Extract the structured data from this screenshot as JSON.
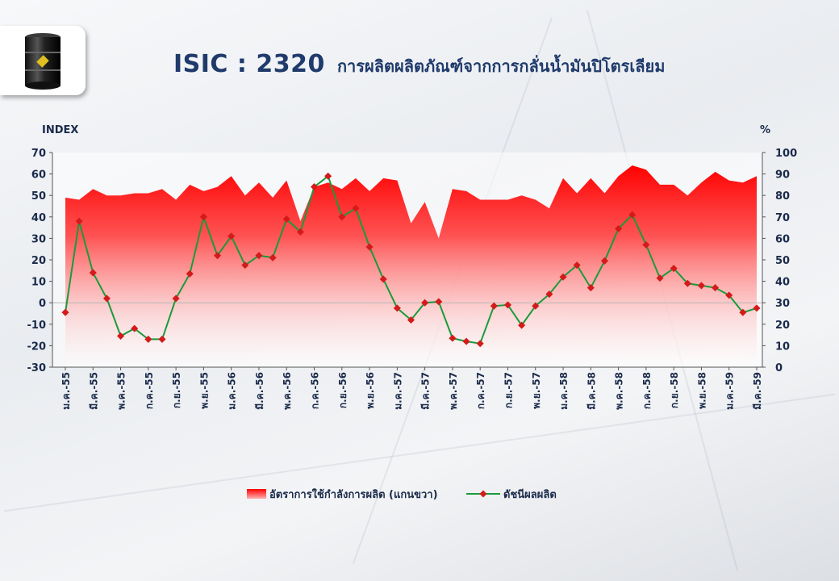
{
  "title": {
    "code": "ISIC : 2320",
    "name": "การผลิตผลิตภัณฑ์จากการกลั่นน้ำมันปิโตรเลียม"
  },
  "logo": {
    "icon": "oil-barrel-icon"
  },
  "chart_data": {
    "type": "line",
    "left_axis": {
      "label": "INDEX",
      "ylim": [
        -30,
        70
      ],
      "ticks": [
        "70",
        "60",
        "50",
        "40",
        "30",
        "20",
        "10",
        "0",
        "-10",
        "-20",
        "-30"
      ]
    },
    "right_axis": {
      "label": "%",
      "ylim": [
        0,
        100
      ],
      "ticks": [
        "100",
        "90",
        "80",
        "70",
        "60",
        "50",
        "40",
        "30",
        "20",
        "10",
        "0"
      ]
    },
    "x_tick_labels": [
      "ม.ค.-55",
      "มี.ค.-55",
      "พ.ค.-55",
      "ก.ค.-55",
      "ก.ย.-55",
      "พ.ย.-55",
      "ม.ค.-56",
      "มี.ค.-56",
      "พ.ค.-56",
      "ก.ค.-56",
      "ก.ย.-56",
      "พ.ย.-56",
      "ม.ค.-57",
      "มี.ค.-57",
      "พ.ค.-57",
      "ก.ค.-57",
      "ก.ย.-57",
      "พ.ย.-57",
      "ม.ค.-58",
      "มี.ค.-58",
      "พ.ค.-58",
      "ก.ค.-58",
      "ก.ย.-58",
      "พ.ย.-58",
      "ม.ค.-59",
      "มี.ค.-59"
    ],
    "series": [
      {
        "name": "อัตราการใช้กำลังการผลิต (แกนขวา)",
        "type": "area",
        "axis": "right",
        "color": "#ff0000",
        "values": [
          79,
          78,
          83,
          80,
          80,
          81,
          81,
          83,
          78,
          85,
          82,
          84,
          89,
          80,
          86,
          79,
          87,
          68,
          84,
          86,
          83,
          88,
          82,
          88,
          87,
          67,
          77,
          60,
          83,
          82,
          78,
          78,
          78,
          80,
          78,
          74,
          88,
          81,
          88,
          81,
          89,
          94,
          92,
          85,
          85,
          80,
          86,
          91,
          87,
          86,
          89
        ]
      },
      {
        "name": "ดัชนีผลผลิต",
        "type": "line",
        "axis": "left",
        "color": "#1a9a3a",
        "marker_color": "#d41a1a",
        "values": [
          -4.5,
          38,
          14,
          2,
          -15.5,
          -12,
          -17,
          -17,
          2,
          13.5,
          40,
          22,
          31,
          17.5,
          22,
          21,
          39,
          33,
          54,
          59,
          40,
          44,
          26,
          11,
          -2.5,
          -8,
          0,
          0.5,
          -16.5,
          -18,
          -19,
          -1.5,
          -1,
          -10.5,
          -1.5,
          4,
          12,
          17.5,
          7,
          19.5,
          34.5,
          41,
          27,
          11.5,
          16,
          9,
          8,
          7,
          3.5,
          -4.5,
          -2.5
        ]
      }
    ],
    "legend_position": "bottom-center"
  }
}
